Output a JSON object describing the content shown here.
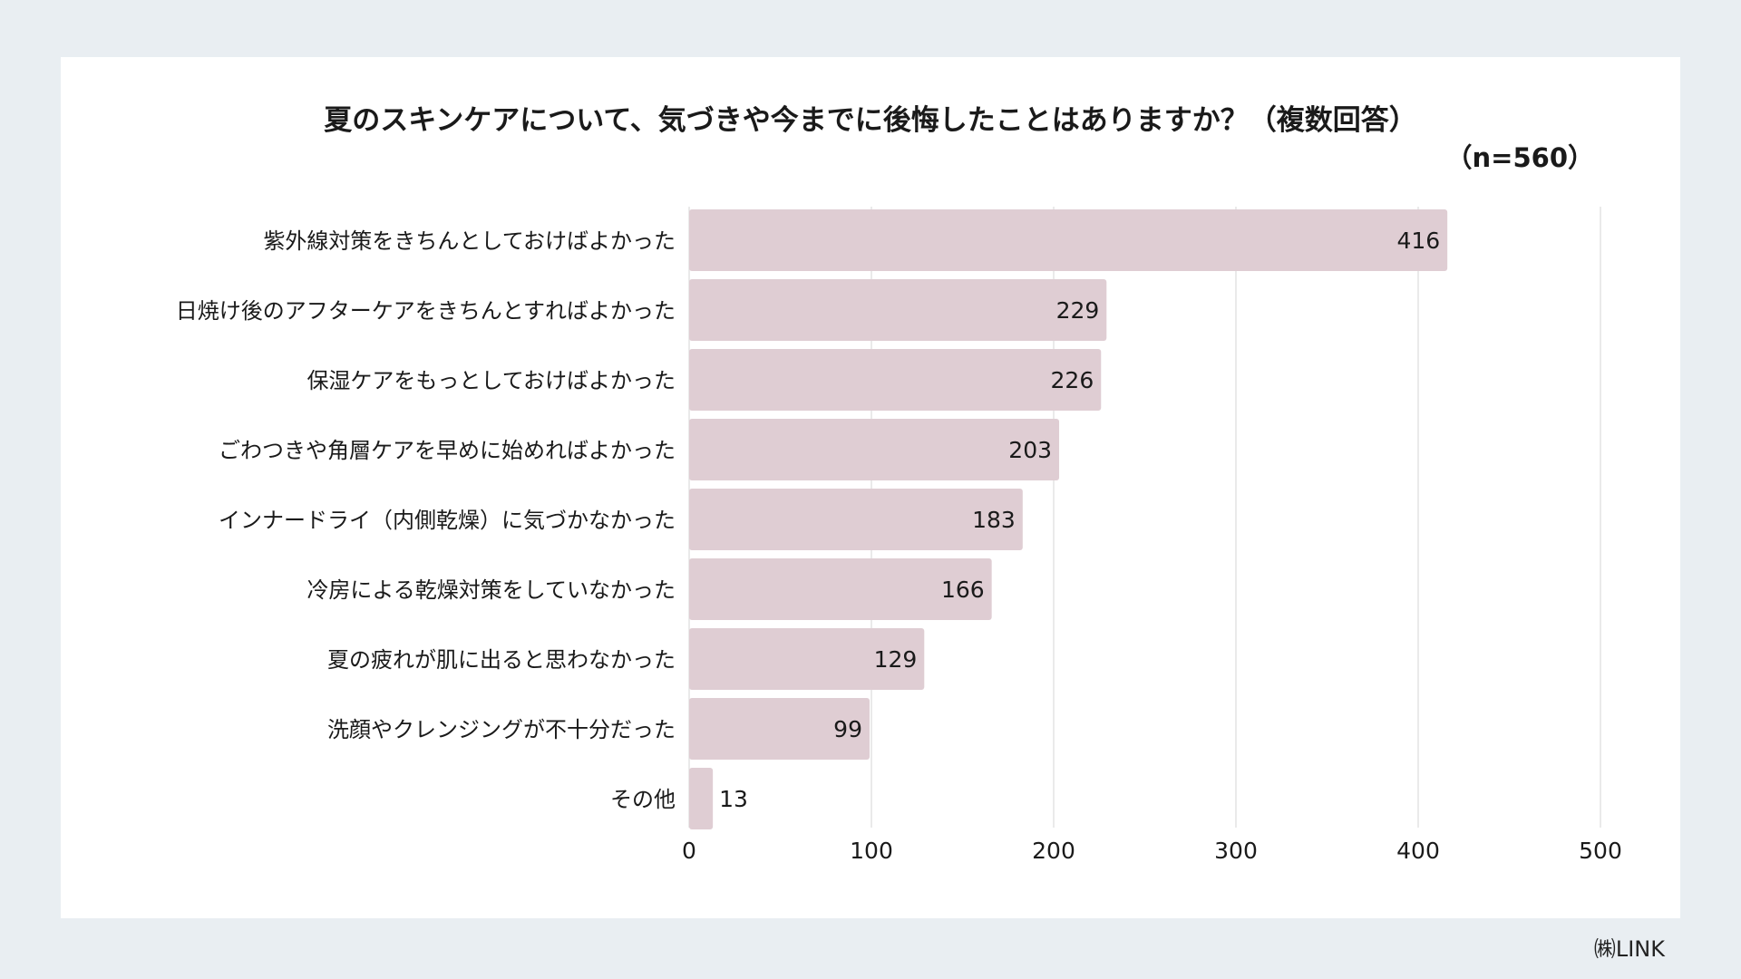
{
  "title": "夏のスキンケアについて、気づきや今までに後悔したことはありますか？（複数回答）",
  "sample_size": "（n=560）",
  "credit": "㈱LINK",
  "colors": {
    "bar": "#dfcdd3",
    "grid": "#dddddd",
    "text": "#1a1a1a",
    "background": "#e9eef2",
    "card": "#ffffff"
  },
  "chart_data": {
    "type": "bar",
    "orientation": "horizontal",
    "categories": [
      "紫外線対策をきちんとしておけばよかった",
      "日焼け後のアフターケアをきちんとすればよかった",
      "保湿ケアをもっとしておけばよかった",
      "ごわつきや角層ケアを早めに始めればよかった",
      "インナードライ（内側乾燥）に気づかなかった",
      "冷房による乾燥対策をしていなかった",
      "夏の疲れが肌に出ると思わなかった",
      "洗顔やクレンジングが不十分だった",
      "その他"
    ],
    "values": [
      416,
      229,
      226,
      203,
      183,
      166,
      129,
      99,
      13
    ],
    "xlim": [
      0,
      500
    ],
    "xticks": [
      0,
      100,
      200,
      300,
      400,
      500
    ],
    "grid": true,
    "data_labels": true
  }
}
